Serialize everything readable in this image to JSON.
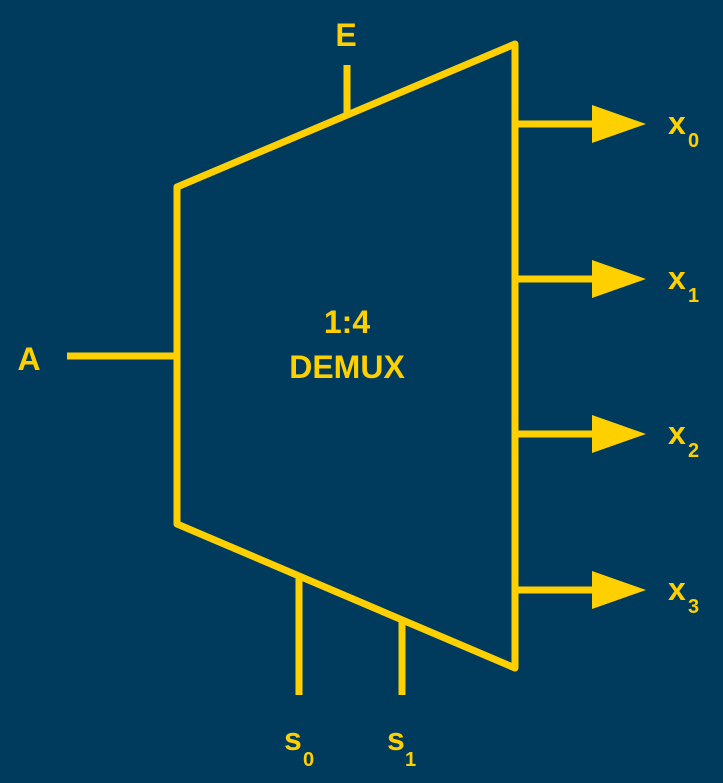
{
  "diagram": {
    "block": {
      "line1": "1:4",
      "line2": "DEMUX"
    },
    "input": {
      "label": "A"
    },
    "enable": {
      "label": "E"
    },
    "outputs": [
      {
        "base": "x",
        "subscript": "0"
      },
      {
        "base": "x",
        "subscript": "1"
      },
      {
        "base": "x",
        "subscript": "2"
      },
      {
        "base": "x",
        "subscript": "3"
      }
    ],
    "selects": [
      {
        "base": "s",
        "subscript": "0"
      },
      {
        "base": "s",
        "subscript": "1"
      }
    ],
    "colors": {
      "background": "#003a5c",
      "stroke": "#ffd000"
    }
  }
}
